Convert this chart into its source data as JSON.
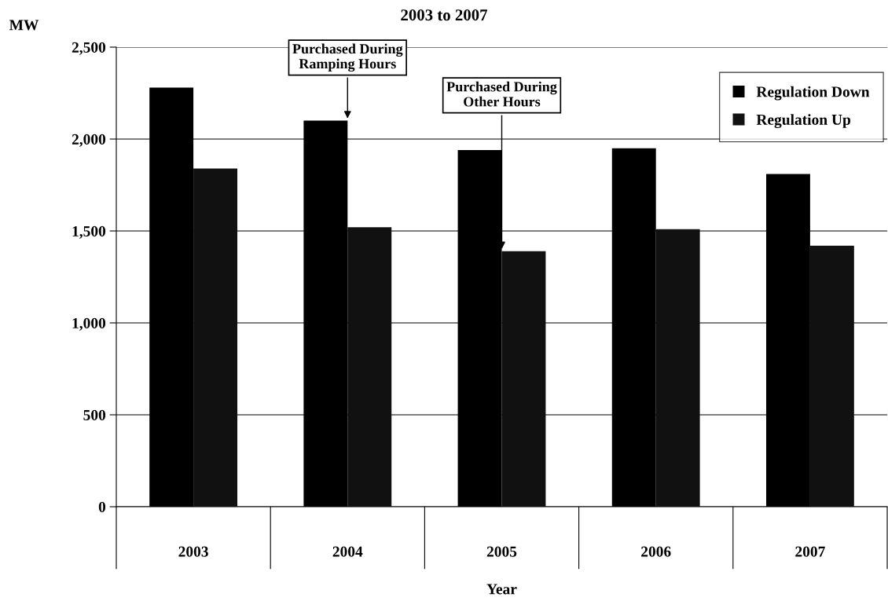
{
  "chart_data": {
    "type": "bar",
    "title": "2003 to 2007",
    "xlabel": "Year",
    "ylabel": "MW",
    "categories": [
      "2003",
      "2004",
      "2005",
      "2006",
      "2007"
    ],
    "series": [
      {
        "name": "Regulation Down",
        "color": "#000000",
        "values": [
          2280,
          2100,
          1940,
          1950,
          1810
        ]
      },
      {
        "name": "Regulation Up",
        "color": "#111111",
        "values": [
          1840,
          1520,
          1390,
          1510,
          1420
        ]
      }
    ],
    "ylim": [
      0,
      2500
    ],
    "yticks": [
      {
        "value": 0,
        "label": "0"
      },
      {
        "value": 500,
        "label": "500"
      },
      {
        "value": 1000,
        "label": "1,000"
      },
      {
        "value": 1500,
        "label": "1,500"
      },
      {
        "value": 2000,
        "label": "2,000"
      },
      {
        "value": 2500,
        "label": "2,500"
      }
    ],
    "grid": "y",
    "legend": "top right",
    "annotations": [
      {
        "text": "Purchased During\nRamping Hours",
        "x": "2004",
        "y": 2100
      },
      {
        "text": "Purchased During\nOther Hours",
        "x": "2005",
        "y": 1390
      }
    ]
  }
}
